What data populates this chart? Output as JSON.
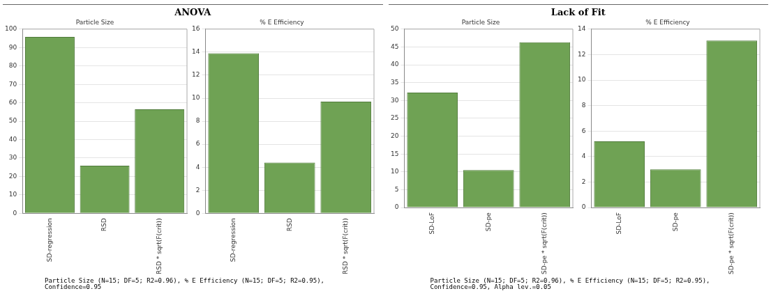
{
  "chart_data": [
    {
      "type": "bar",
      "title": "ANOVA",
      "subtitle": "Particle Size",
      "categories": [
        "SD-regression",
        "RSD",
        "RSD * sqrt(F(crit))"
      ],
      "values": [
        95.8,
        25.8,
        56.5
      ],
      "color": "#6fa254",
      "ylim": [
        0,
        100
      ],
      "yticks": [
        0,
        10,
        20,
        30,
        40,
        50,
        60,
        70,
        80,
        90,
        100
      ],
      "grid": "y"
    },
    {
      "type": "bar",
      "subtitle": "% E Efficiency",
      "categories": [
        "SD-regression",
        "RSD",
        "RSD * sqrt(F(crit))"
      ],
      "values": [
        13.9,
        4.4,
        9.7
      ],
      "color": "#6fa254",
      "ylim": [
        0,
        16
      ],
      "yticks": [
        0,
        2,
        4,
        6,
        8,
        10,
        12,
        14,
        16
      ],
      "grid": "y",
      "annotations": [
        "Particle Size (N=15; DF=5; R2=0.96), % E Efficiency (N=15; DF=5; R2=0.95), Confidence=0.95"
      ]
    },
    {
      "type": "bar",
      "title": "Lack of Fit",
      "subtitle": "Particle Size",
      "categories": [
        "SD-LoF",
        "SD-pe",
        "SD-pe * sqrt(F(crit))"
      ],
      "values": [
        32.2,
        10.5,
        46.3
      ],
      "color": "#6fa254",
      "ylim": [
        0,
        50
      ],
      "yticks": [
        0,
        5,
        10,
        15,
        20,
        25,
        30,
        35,
        40,
        45,
        50
      ],
      "grid": "y"
    },
    {
      "type": "bar",
      "subtitle": "% E Efficiency",
      "categories": [
        "SD-LoF",
        "SD-pe",
        "SD-pe * sqrt(F(crit))"
      ],
      "values": [
        5.2,
        3.0,
        13.1
      ],
      "color": "#6fa254",
      "ylim": [
        0,
        14
      ],
      "yticks": [
        0,
        2,
        4,
        6,
        8,
        10,
        12,
        14
      ],
      "grid": "y",
      "annotations": [
        "Particle Size (N=15; DF=5; R2=0.96), % E Efficiency (N=15; DF=5; R2=0.95), Confidence=0.95, Alpha lev.=0.05"
      ]
    }
  ]
}
